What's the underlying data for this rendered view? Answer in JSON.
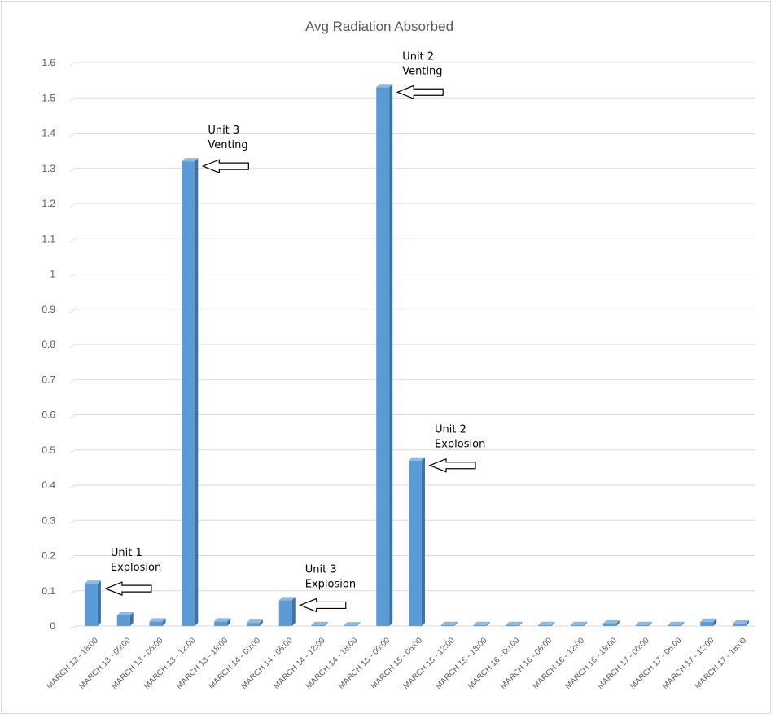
{
  "chart_data": {
    "type": "bar",
    "title": "Avg Radiation Absorbed",
    "xlabel": "",
    "ylabel": "",
    "ylim": [
      0,
      1.6
    ],
    "yticks": [
      0,
      0.1,
      0.2,
      0.3,
      0.4,
      0.5,
      0.6,
      0.7,
      0.8,
      0.9,
      1,
      1.1,
      1.2,
      1.3,
      1.4,
      1.5,
      1.6
    ],
    "ytick_labels": [
      "0",
      "0.1",
      "0.2",
      "0.3",
      "0.4",
      "0.5",
      "0.6",
      "0.7",
      "0.8",
      "0.9",
      "1",
      "1.1",
      "1.2",
      "1.3",
      "1.4",
      "1.5",
      "1.6"
    ],
    "grid": true,
    "bar_color": "#5b9bd5",
    "categories": [
      "MARCH 12 - 18:00",
      "MARCH 13 - 00:00",
      "MARCH 13 - 06:00",
      "MARCH 13 - 12:00",
      "MARCH 13 - 18:00",
      "MARCH 14 - 00:00",
      "MARCH 14 - 06:00",
      "MARCH 14 - 12:00",
      "MARCH 14 - 18:00",
      "MARCH 15 - 00:00",
      "MARCH 15 - 06:00",
      "MARCH 15 - 12:00",
      "MARCH 15 - 18:00",
      "MARCH 16 - 00:00",
      "MARCH 16 - 06:00",
      "MARCH 16 - 12:00",
      "MARCH 16 - 18:00",
      "MARCH 17 - 00:00",
      "MARCH 17 - 06:00",
      "MARCH 17 - 12:00",
      "MARCH 17 - 18:00"
    ],
    "values": [
      0.12,
      0.03,
      0.013,
      1.32,
      0.013,
      0.009,
      0.073,
      0.003,
      0.002,
      1.53,
      0.47,
      0.003,
      0.003,
      0.003,
      0.003,
      0.003,
      0.007,
      0.003,
      0.003,
      0.012,
      0.007
    ],
    "annotations": [
      {
        "lines": [
          "Unit 1",
          "Explosion"
        ],
        "category_index": 0
      },
      {
        "lines": [
          "Unit 3",
          "Venting"
        ],
        "category_index": 3
      },
      {
        "lines": [
          "Unit 3",
          "Explosion"
        ],
        "category_index": 6
      },
      {
        "lines": [
          "Unit 2",
          "Venting"
        ],
        "category_index": 9
      },
      {
        "lines": [
          "Unit 2",
          "Explosion"
        ],
        "category_index": 10
      }
    ]
  }
}
